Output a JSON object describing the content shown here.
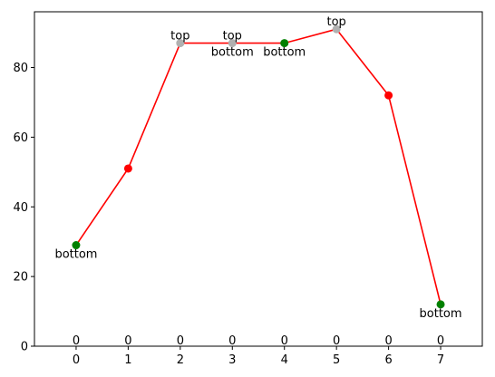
{
  "chart_data": {
    "type": "line",
    "title": "",
    "xlabel": "",
    "ylabel": "",
    "x": [
      0,
      1,
      2,
      3,
      4,
      5,
      6,
      7
    ],
    "series": [
      {
        "values": [
          29,
          51,
          87,
          87,
          87,
          91,
          72,
          12
        ],
        "line_color": "#ff0000",
        "marker_colors": [
          "#008000",
          "#ff0000",
          "#b0b0b0",
          "#b0b0b0",
          "#008000",
          "#b0b0b0",
          "#ff0000",
          "#008000"
        ]
      }
    ],
    "xlim": [
      -0.8,
      7.8
    ],
    "ylim": [
      0,
      96
    ],
    "xticks": [
      0,
      1,
      2,
      3,
      4,
      5,
      6,
      7
    ],
    "yticks": [
      0,
      20,
      40,
      60,
      80
    ],
    "grid": false,
    "top_labels": [
      {
        "x": 2,
        "y": 87,
        "text": "top"
      },
      {
        "x": 3,
        "y": 87,
        "text": "top"
      },
      {
        "x": 5,
        "y": 91,
        "text": "top"
      }
    ],
    "bottom_labels": [
      {
        "x": 0,
        "y": 29,
        "text": "bottom"
      },
      {
        "x": 3,
        "y": 87,
        "text": "bottom"
      },
      {
        "x": 4,
        "y": 87,
        "text": "bottom"
      },
      {
        "x": 7,
        "y": 12,
        "text": "bottom"
      }
    ],
    "baseline_labels": [
      {
        "x": 0,
        "text": "0"
      },
      {
        "x": 1,
        "text": "0"
      },
      {
        "x": 2,
        "text": "0"
      },
      {
        "x": 3,
        "text": "0"
      },
      {
        "x": 4,
        "text": "0"
      },
      {
        "x": 5,
        "text": "0"
      },
      {
        "x": 6,
        "text": "0"
      },
      {
        "x": 7,
        "text": "0"
      }
    ]
  }
}
